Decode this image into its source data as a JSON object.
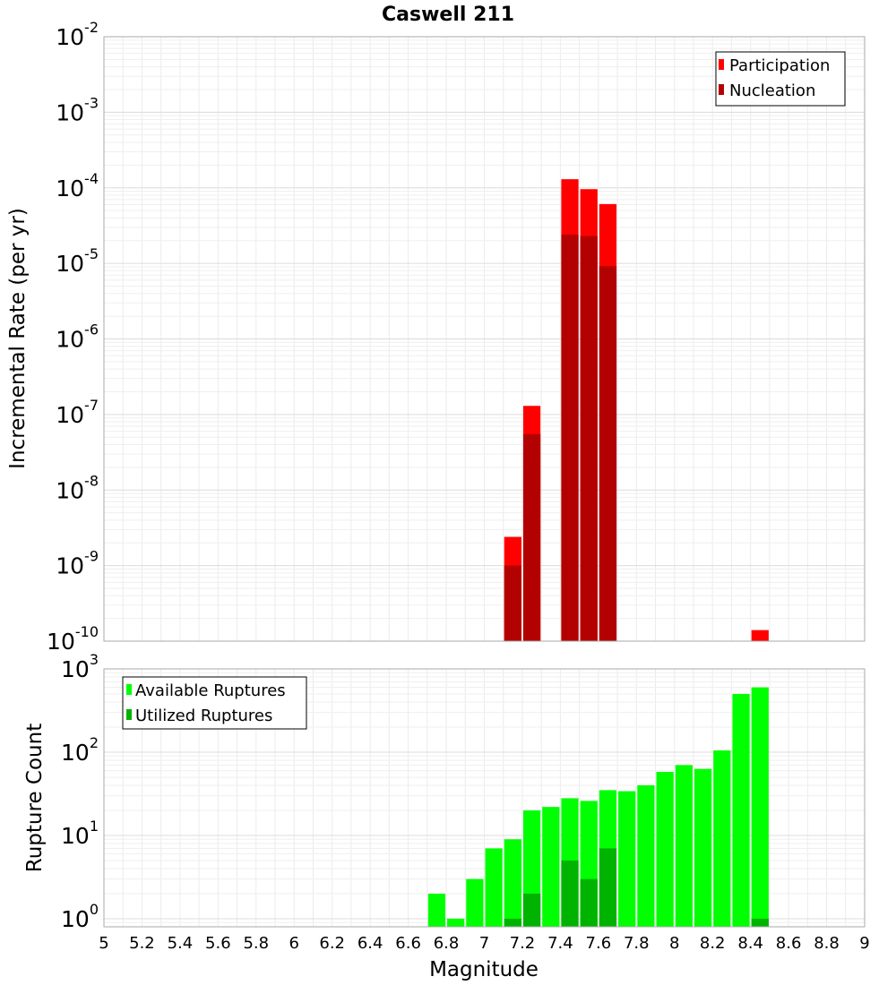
{
  "title": "Caswell 211",
  "x_axis": {
    "label": "Magnitude",
    "range": [
      5,
      9
    ],
    "ticks": [
      "5",
      "5.2",
      "5.4",
      "5.6",
      "5.8",
      "6",
      "6.2",
      "6.4",
      "6.6",
      "6.8",
      "7",
      "7.2",
      "7.4",
      "7.6",
      "7.8",
      "8",
      "8.2",
      "8.4",
      "8.6",
      "8.8",
      "9"
    ]
  },
  "chart_data": [
    {
      "type": "bar",
      "title": "Caswell 211",
      "xlabel": "Magnitude",
      "ylabel": "Incremental Rate (per yr)",
      "xlim": [
        5,
        9
      ],
      "ylim_exp": [
        -10,
        -2
      ],
      "yscale": "log",
      "bin_width": 0.1,
      "y_tick_labels": [
        {
          "base": "10",
          "exp": "-10"
        },
        {
          "base": "10",
          "exp": "-9"
        },
        {
          "base": "10",
          "exp": "-8"
        },
        {
          "base": "10",
          "exp": "-7"
        },
        {
          "base": "10",
          "exp": "-6"
        },
        {
          "base": "10",
          "exp": "-5"
        },
        {
          "base": "10",
          "exp": "-4"
        },
        {
          "base": "10",
          "exp": "-3"
        },
        {
          "base": "10",
          "exp": "-2"
        }
      ],
      "legend_position": "top-right",
      "series": [
        {
          "name": "Participation",
          "color": "#ff0000",
          "points": [
            {
              "x": 7.15,
              "y": 2.4e-09
            },
            {
              "x": 7.25,
              "y": 1.3e-07
            },
            {
              "x": 7.45,
              "y": 0.00013
            },
            {
              "x": 7.55,
              "y": 9.6e-05
            },
            {
              "x": 7.65,
              "y": 6.1e-05
            },
            {
              "x": 8.45,
              "y": 1.4e-10
            }
          ]
        },
        {
          "name": "Nucleation",
          "color": "#b30000",
          "points": [
            {
              "x": 7.15,
              "y": 1e-09
            },
            {
              "x": 7.25,
              "y": 5.5e-08
            },
            {
              "x": 7.45,
              "y": 2.4e-05
            },
            {
              "x": 7.55,
              "y": 2.3e-05
            },
            {
              "x": 7.65,
              "y": 9.2e-06
            }
          ]
        }
      ]
    },
    {
      "type": "bar",
      "title": "",
      "xlabel": "Magnitude",
      "ylabel": "Rupture Count",
      "xlim": [
        5,
        9
      ],
      "ylim": [
        0.8,
        1000
      ],
      "yscale": "log",
      "bin_width": 0.1,
      "y_tick_labels": [
        {
          "base": "10",
          "exp": "0",
          "value": 1
        },
        {
          "base": "10",
          "exp": "1",
          "value": 10
        },
        {
          "base": "10",
          "exp": "2",
          "value": 100
        },
        {
          "base": "10",
          "exp": "3",
          "value": 1000
        }
      ],
      "legend_position": "top-left",
      "series": [
        {
          "name": "Available Ruptures",
          "color": "#00ff00",
          "points": [
            {
              "x": 6.75,
              "y": 2
            },
            {
              "x": 6.85,
              "y": 1
            },
            {
              "x": 6.95,
              "y": 3
            },
            {
              "x": 7.05,
              "y": 7
            },
            {
              "x": 7.15,
              "y": 9
            },
            {
              "x": 7.25,
              "y": 20
            },
            {
              "x": 7.35,
              "y": 22
            },
            {
              "x": 7.45,
              "y": 28
            },
            {
              "x": 7.55,
              "y": 26
            },
            {
              "x": 7.65,
              "y": 35
            },
            {
              "x": 7.75,
              "y": 34
            },
            {
              "x": 7.85,
              "y": 40
            },
            {
              "x": 7.95,
              "y": 58
            },
            {
              "x": 8.05,
              "y": 70
            },
            {
              "x": 8.15,
              "y": 63
            },
            {
              "x": 8.25,
              "y": 105
            },
            {
              "x": 8.35,
              "y": 500
            },
            {
              "x": 8.45,
              "y": 600
            }
          ]
        },
        {
          "name": "Utilized Ruptures",
          "color": "#00b300",
          "points": [
            {
              "x": 7.15,
              "y": 1
            },
            {
              "x": 7.25,
              "y": 2
            },
            {
              "x": 7.45,
              "y": 5
            },
            {
              "x": 7.55,
              "y": 3
            },
            {
              "x": 7.65,
              "y": 7
            },
            {
              "x": 8.45,
              "y": 1
            }
          ]
        }
      ]
    }
  ]
}
